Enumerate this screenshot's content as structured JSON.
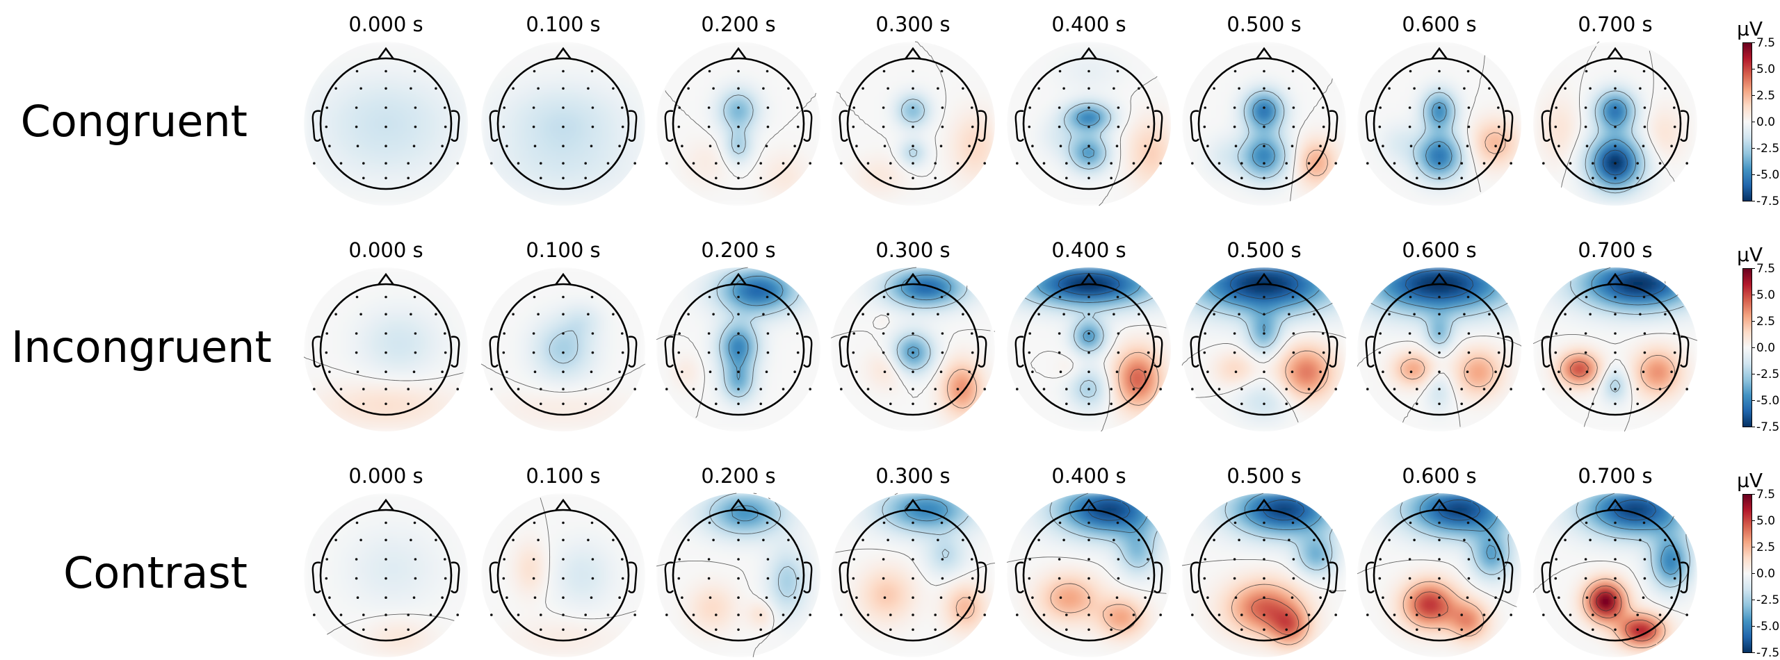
{
  "figure": {
    "rows": [
      {
        "label": "Congruent",
        "maps": [
          {
            "time": "0.000 s",
            "blobs": [
              [
                0.0,
                0.45,
                -0.7,
                1.0,
                0.55
              ],
              [
                0.0,
                -0.15,
                -1.3,
                1.0,
                0.6
              ]
            ]
          },
          {
            "time": "0.100 s",
            "blobs": [
              [
                0.0,
                0.65,
                -1.0,
                1.1,
                0.5
              ],
              [
                0.0,
                -0.05,
                -1.6,
                0.9,
                0.55
              ]
            ]
          },
          {
            "time": "0.200 s",
            "blobs": [
              [
                0.0,
                -0.2,
                -3.5,
                0.3,
                0.32
              ],
              [
                0.0,
                0.35,
                -2.5,
                0.2,
                0.25
              ],
              [
                0.7,
                0.8,
                0.8,
                0.35,
                0.35
              ],
              [
                -0.5,
                0.6,
                0.6,
                0.35,
                0.35
              ]
            ]
          },
          {
            "time": "0.300 s",
            "blobs": [
              [
                0.0,
                -0.2,
                -3.3,
                0.25,
                0.25
              ],
              [
                0.0,
                0.45,
                -2.3,
                0.2,
                0.2
              ],
              [
                0.95,
                0.35,
                1.5,
                0.35,
                0.5
              ],
              [
                -0.5,
                0.8,
                0.8,
                0.4,
                0.3
              ]
            ]
          },
          {
            "time": "0.400 s",
            "blobs": [
              [
                0.0,
                -0.1,
                -5.0,
                0.35,
                0.22
              ],
              [
                0.0,
                0.45,
                -4.3,
                0.3,
                0.28
              ],
              [
                -0.45,
                0.2,
                -1.0,
                0.3,
                0.3
              ],
              [
                0.95,
                0.45,
                1.8,
                0.35,
                0.5
              ],
              [
                0.0,
                -0.8,
                -0.6,
                0.5,
                0.3
              ]
            ]
          },
          {
            "time": "0.500 s",
            "blobs": [
              [
                0.0,
                -0.2,
                -5.5,
                0.3,
                0.3
              ],
              [
                0.0,
                0.5,
                -5.0,
                0.35,
                0.35
              ],
              [
                0.8,
                0.6,
                2.8,
                0.3,
                0.35
              ],
              [
                -0.6,
                0.5,
                -1.0,
                0.3,
                0.3
              ]
            ]
          },
          {
            "time": "0.600 s",
            "blobs": [
              [
                0.0,
                -0.2,
                -4.8,
                0.25,
                0.3
              ],
              [
                0.0,
                0.5,
                -5.5,
                0.35,
                0.35
              ],
              [
                0.85,
                0.3,
                2.5,
                0.35,
                0.35
              ],
              [
                -0.6,
                0.3,
                -1.0,
                0.3,
                0.3
              ]
            ]
          },
          {
            "time": "0.700 s",
            "blobs": [
              [
                0.0,
                -0.2,
                -5.5,
                0.3,
                0.3
              ],
              [
                0.0,
                0.6,
                -7.5,
                0.4,
                0.4
              ],
              [
                -0.85,
                0.1,
                1.0,
                0.3,
                0.5
              ],
              [
                0.75,
                0.15,
                1.0,
                0.3,
                0.4
              ]
            ]
          }
        ]
      },
      {
        "label": "Incongruent",
        "maps": [
          {
            "time": "0.000 s",
            "blobs": [
              [
                0.2,
                -0.1,
                -1.4,
                0.6,
                0.5
              ],
              [
                0.0,
                0.85,
                1.2,
                1.0,
                0.35
              ]
            ]
          },
          {
            "time": "0.100 s",
            "blobs": [
              [
                0.0,
                0.0,
                -2.5,
                0.45,
                0.45
              ],
              [
                0.3,
                -0.45,
                -1.0,
                0.3,
                0.25
              ],
              [
                0.0,
                0.9,
                0.6,
                1.0,
                0.3
              ]
            ]
          },
          {
            "time": "0.200 s",
            "blobs": [
              [
                0.0,
                -0.05,
                -5.0,
                0.3,
                0.35
              ],
              [
                0.0,
                0.5,
                -3.5,
                0.25,
                0.3
              ],
              [
                0.3,
                -0.9,
                -6.0,
                0.6,
                0.35
              ],
              [
                -0.8,
                0.35,
                0.7,
                0.2,
                0.25
              ]
            ]
          },
          {
            "time": "0.300 s",
            "blobs": [
              [
                0.0,
                0.05,
                -4.5,
                0.3,
                0.3
              ],
              [
                0.2,
                -0.95,
                -6.0,
                0.6,
                0.3
              ],
              [
                0.75,
                0.6,
                3.5,
                0.3,
                0.4
              ],
              [
                -0.4,
                0.3,
                1.0,
                0.3,
                0.3
              ],
              [
                -0.45,
                -0.45,
                0.5,
                0.1,
                0.1
              ]
            ]
          },
          {
            "time": "0.400 s",
            "blobs": [
              [
                0.0,
                -0.2,
                -4.5,
                0.25,
                0.25
              ],
              [
                0.0,
                -1.0,
                -7.5,
                1.0,
                0.35
              ],
              [
                0.75,
                0.45,
                4.5,
                0.35,
                0.45
              ],
              [
                0.0,
                0.6,
                -2.5,
                0.3,
                0.3
              ],
              [
                -0.3,
                0.3,
                0.5,
                0.2,
                0.2
              ]
            ]
          },
          {
            "time": "0.500 s",
            "blobs": [
              [
                0.0,
                -1.0,
                -7.5,
                1.1,
                0.45
              ],
              [
                0.0,
                -0.25,
                -3.5,
                0.25,
                0.3
              ],
              [
                0.65,
                0.35,
                4.0,
                0.4,
                0.4
              ],
              [
                -0.45,
                0.3,
                1.5,
                0.3,
                0.25
              ],
              [
                0.0,
                0.8,
                -1.5,
                0.4,
                0.3
              ]
            ]
          },
          {
            "time": "0.600 s",
            "blobs": [
              [
                0.0,
                -1.0,
                -7.5,
                1.1,
                0.45
              ],
              [
                0.0,
                -0.25,
                -3.0,
                0.2,
                0.25
              ],
              [
                -0.4,
                0.3,
                3.0,
                0.3,
                0.25
              ],
              [
                0.6,
                0.35,
                3.0,
                0.35,
                0.35
              ],
              [
                0.0,
                0.65,
                -1.5,
                0.2,
                0.3
              ]
            ]
          },
          {
            "time": "0.700 s",
            "blobs": [
              [
                0.35,
                -1.0,
                -7.5,
                0.9,
                0.4
              ],
              [
                -0.55,
                0.3,
                5.0,
                0.3,
                0.25
              ],
              [
                0.65,
                0.35,
                3.5,
                0.35,
                0.35
              ],
              [
                0.0,
                0.55,
                -2.5,
                0.2,
                0.25
              ]
            ]
          }
        ]
      },
      {
        "label": "Contrast",
        "maps": [
          {
            "time": "0.000 s",
            "blobs": [
              [
                0.1,
                -0.1,
                -0.9,
                0.7,
                0.6
              ],
              [
                0.2,
                0.95,
                0.9,
                0.5,
                0.3
              ]
            ]
          },
          {
            "time": "0.100 s",
            "blobs": [
              [
                -0.5,
                -0.1,
                1.2,
                0.25,
                0.4
              ],
              [
                0.3,
                0.0,
                -1.2,
                0.45,
                0.5
              ],
              [
                0.0,
                0.95,
                0.6,
                0.8,
                0.3
              ]
            ]
          },
          {
            "time": "0.200 s",
            "blobs": [
              [
                0.1,
                -0.95,
                -4.5,
                0.6,
                0.35
              ],
              [
                0.75,
                0.1,
                -2.5,
                0.3,
                0.5
              ],
              [
                -0.4,
                0.5,
                1.4,
                0.35,
                0.35
              ],
              [
                0.35,
                0.6,
                1.2,
                0.2,
                0.2
              ]
            ]
          },
          {
            "time": "0.300 s",
            "blobs": [
              [
                0.2,
                -1.0,
                -5.0,
                0.7,
                0.35
              ],
              [
                -0.4,
                0.3,
                2.0,
                0.4,
                0.4
              ],
              [
                0.8,
                0.5,
                2.5,
                0.3,
                0.35
              ],
              [
                0.5,
                -0.3,
                -2.0,
                0.3,
                0.3
              ]
            ]
          },
          {
            "time": "0.400 s",
            "blobs": [
              [
                0.3,
                -1.0,
                -7.0,
                0.8,
                0.4
              ],
              [
                -0.3,
                0.35,
                3.0,
                0.45,
                0.35
              ],
              [
                0.5,
                0.65,
                3.0,
                0.35,
                0.3
              ],
              [
                0.75,
                -0.35,
                -3.0,
                0.3,
                0.35
              ]
            ]
          },
          {
            "time": "0.500 s",
            "blobs": [
              [
                0.3,
                -1.0,
                -7.0,
                0.8,
                0.4
              ],
              [
                0.0,
                0.5,
                4.5,
                0.55,
                0.4
              ],
              [
                0.4,
                0.8,
                3.5,
                0.3,
                0.3
              ],
              [
                0.8,
                -0.3,
                -3.5,
                0.3,
                0.3
              ]
            ]
          },
          {
            "time": "0.600 s",
            "blobs": [
              [
                0.3,
                -1.0,
                -7.0,
                0.8,
                0.4
              ],
              [
                -0.15,
                0.45,
                5.5,
                0.4,
                0.35
              ],
              [
                0.45,
                0.7,
                3.5,
                0.3,
                0.3
              ],
              [
                0.8,
                -0.3,
                -4.0,
                0.3,
                0.35
              ]
            ]
          },
          {
            "time": "0.700 s",
            "blobs": [
              [
                0.3,
                -1.0,
                -7.0,
                0.8,
                0.4
              ],
              [
                -0.15,
                0.4,
                7.5,
                0.3,
                0.3
              ],
              [
                0.4,
                0.85,
                6.0,
                0.35,
                0.25
              ],
              [
                0.85,
                -0.2,
                -5.0,
                0.3,
                0.4
              ]
            ]
          }
        ]
      }
    ],
    "colorbar": {
      "unit": "µV",
      "range": [
        -7.5,
        7.5
      ],
      "ticks": [
        "7.5",
        "5.0",
        "2.5",
        "0.0",
        "-2.5",
        "-5.0",
        "-7.5"
      ],
      "colormap": "RdBu_r"
    },
    "colors": {
      "negative": "#053061",
      "positive": "#67001f",
      "neutral": "#f7f7f7",
      "outline": "#000000"
    }
  }
}
